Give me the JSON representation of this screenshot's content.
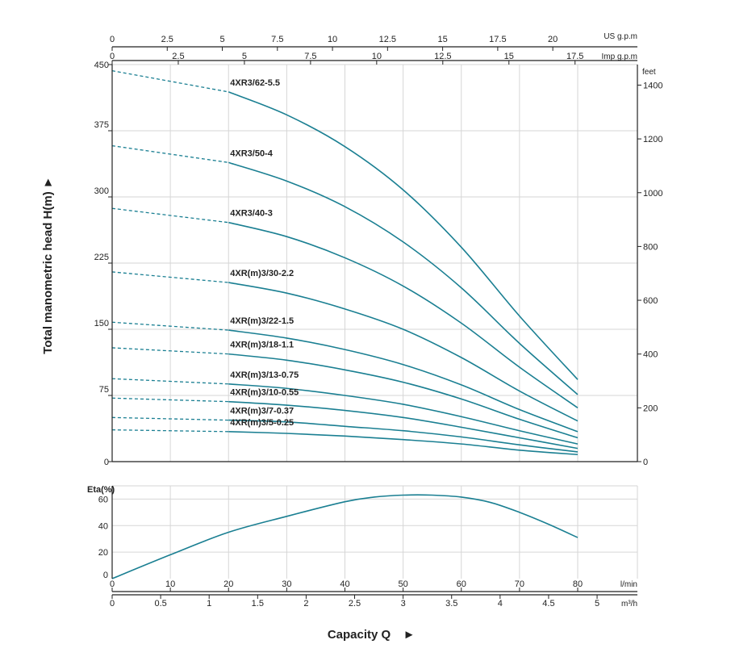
{
  "chart_data": {
    "type": "line",
    "curve_color": "#1a7f92",
    "grid": true,
    "head_chart": {
      "ylabel": "Total manometric head H(m)",
      "ylim": [
        0,
        450
      ],
      "yticks": [
        0,
        75,
        150,
        225,
        300,
        375,
        450
      ],
      "right_axis": {
        "unit": "feet",
        "ticks": [
          0,
          200,
          400,
          600,
          800,
          1000,
          1200,
          1400
        ]
      },
      "top_axes": [
        {
          "unit": "US g.p.m",
          "ticks": [
            0,
            2.5,
            5,
            7.5,
            10,
            12.5,
            15,
            17.5,
            20
          ]
        },
        {
          "unit": "Imp g.p.m",
          "ticks": [
            0,
            2.5,
            5,
            7.5,
            10,
            12.5,
            15,
            17.5
          ]
        }
      ],
      "dashed_until_lmin": 20,
      "series": [
        {
          "name": "4XR3/62-5.5",
          "x": [
            0,
            20,
            30,
            40,
            50,
            60,
            70,
            80
          ],
          "y": [
            443,
            419,
            393,
            357,
            308,
            243,
            165,
            93
          ]
        },
        {
          "name": "4XR3/50-4",
          "x": [
            0,
            20,
            30,
            40,
            50,
            60,
            70,
            80
          ],
          "y": [
            358,
            339,
            318,
            289,
            249,
            197,
            134,
            76
          ]
        },
        {
          "name": "4XR3/40-3",
          "x": [
            0,
            20,
            30,
            40,
            50,
            60,
            70,
            80
          ],
          "y": [
            287,
            271,
            255,
            231,
            199,
            157,
            107,
            61
          ]
        },
        {
          "name": "4XR(m)3/30-2.2",
          "x": [
            0,
            20,
            30,
            40,
            50,
            60,
            70,
            80
          ],
          "y": [
            215,
            203,
            191,
            173,
            150,
            118,
            80,
            46
          ]
        },
        {
          "name": "4XR(m)3/22-1.5",
          "x": [
            0,
            20,
            30,
            40,
            50,
            60,
            70,
            80
          ],
          "y": [
            158,
            149,
            140,
            127,
            110,
            87,
            59,
            34
          ]
        },
        {
          "name": "4XR(m)3/18-1.1",
          "x": [
            0,
            20,
            30,
            40,
            50,
            60,
            70,
            80
          ],
          "y": [
            129,
            122,
            115,
            104,
            90,
            71,
            48,
            27
          ]
        },
        {
          "name": "4XR(m)3/13-0.75",
          "x": [
            0,
            20,
            30,
            40,
            50,
            60,
            70,
            80
          ],
          "y": [
            94,
            88,
            83,
            75,
            65,
            51,
            35,
            20
          ]
        },
        {
          "name": "4XR(m)3/10-0.55",
          "x": [
            0,
            20,
            30,
            40,
            50,
            60,
            70,
            80
          ],
          "y": [
            72,
            68,
            64,
            58,
            50,
            39,
            27,
            15
          ]
        },
        {
          "name": "4XR(m)3/7-0.37",
          "x": [
            0,
            20,
            30,
            40,
            50,
            60,
            70,
            80
          ],
          "y": [
            50,
            47,
            45,
            40,
            35,
            28,
            19,
            11
          ]
        },
        {
          "name": "4XR(m)3/5-0.25",
          "x": [
            0,
            20,
            30,
            40,
            50,
            60,
            70,
            80
          ],
          "y": [
            36,
            34,
            32,
            29,
            25,
            20,
            13,
            8
          ]
        }
      ]
    },
    "eta_chart": {
      "ylabel": "Eta(%)",
      "ylim": [
        0,
        70
      ],
      "yticks": [
        0,
        20,
        40,
        60
      ],
      "series": [
        {
          "x": [
            0,
            10,
            20,
            30,
            40,
            45,
            50,
            55,
            60,
            65,
            70,
            75,
            80
          ],
          "y": [
            0,
            18,
            35,
            47,
            58,
            61.5,
            63,
            63,
            61.5,
            57.5,
            50,
            41,
            31
          ]
        }
      ]
    },
    "bottom_axes": [
      {
        "unit": "l/min",
        "ticks": [
          0,
          10,
          20,
          30,
          40,
          50,
          60,
          70,
          80
        ]
      },
      {
        "unit": "m³/h",
        "ticks": [
          0,
          0.5,
          1,
          1.5,
          2,
          2.5,
          3,
          3.5,
          4,
          4.5,
          5
        ]
      }
    ],
    "xlabel": "Capacity Q"
  }
}
